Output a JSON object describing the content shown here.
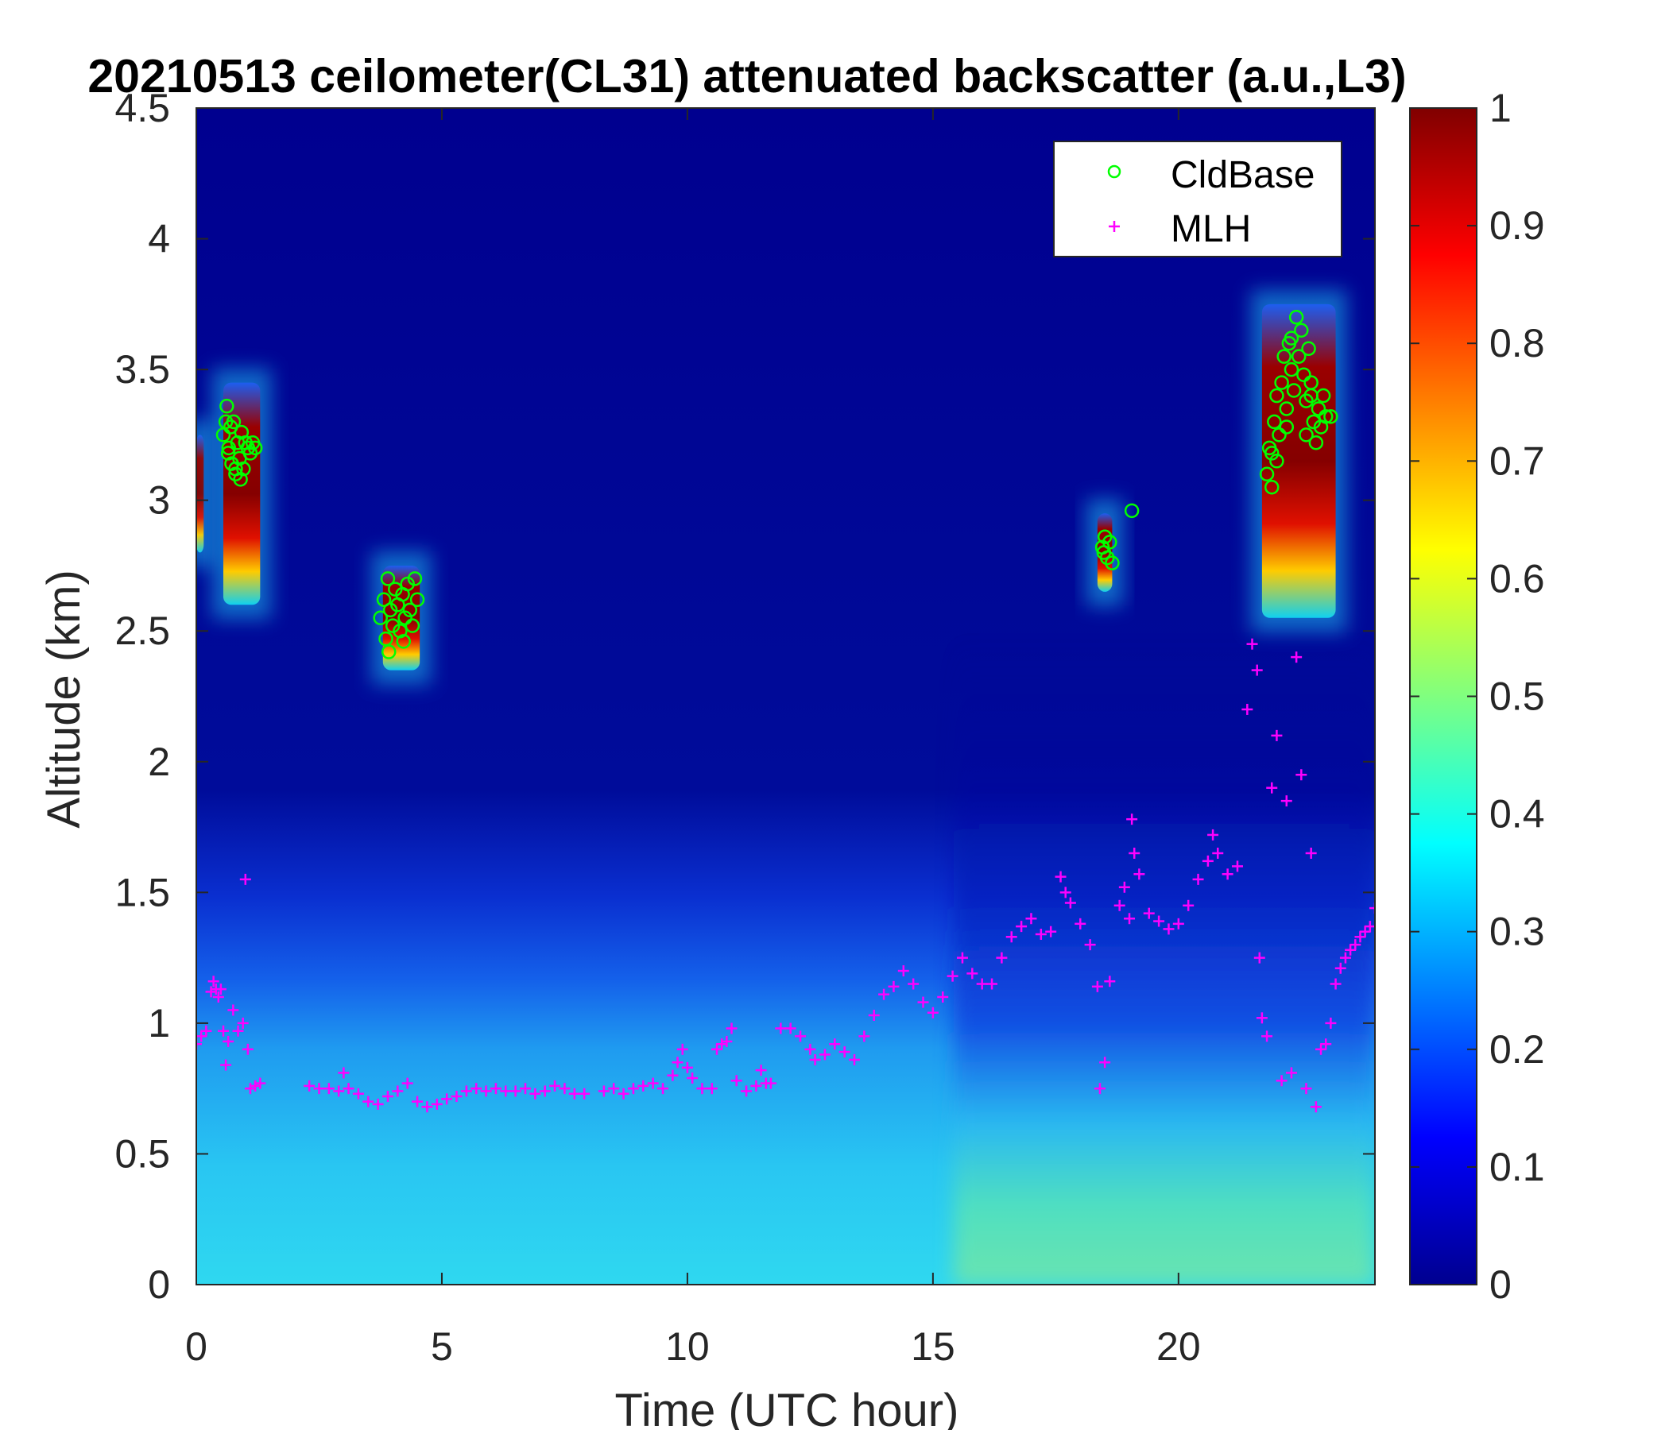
{
  "chart_data": {
    "type": "heatmap",
    "title": "20210513 ceilometer(CL31) attenuated backscatter (a.u.,L3)",
    "xlabel": "Time (UTC hour)",
    "ylabel": "Altitude (km)",
    "xlim": [
      0,
      24
    ],
    "ylim": [
      0,
      4.5
    ],
    "xticks": [
      "0",
      "5",
      "10",
      "15",
      "20"
    ],
    "xtick_values": [
      0,
      5,
      10,
      15,
      20
    ],
    "yticks": [
      "0",
      "0.5",
      "1",
      "1.5",
      "2",
      "2.5",
      "3",
      "3.5",
      "4",
      "4.5"
    ],
    "ytick_values": [
      0,
      0.5,
      1,
      1.5,
      2,
      2.5,
      3,
      3.5,
      4,
      4.5
    ],
    "colorbar": {
      "range": [
        0,
        1
      ],
      "colormap": "jet",
      "ticks": [
        "0",
        "0.1",
        "0.2",
        "0.3",
        "0.4",
        "0.5",
        "0.6",
        "0.7",
        "0.8",
        "0.9",
        "1"
      ],
      "tick_values": [
        0,
        0.1,
        0.2,
        0.3,
        0.4,
        0.5,
        0.6,
        0.7,
        0.8,
        0.9,
        1
      ]
    },
    "legend": {
      "location": "top-right",
      "entries": [
        {
          "label": "CldBase",
          "marker": "circle",
          "color": "#00ff00"
        },
        {
          "label": "MLH",
          "marker": "plus",
          "color": "#ff00ff"
        }
      ]
    },
    "cloud_regions": [
      {
        "t0": 0.0,
        "t1": 0.15,
        "z0": 2.8,
        "z1": 3.25,
        "value": 0.95
      },
      {
        "t0": 0.55,
        "t1": 1.3,
        "z0": 2.6,
        "z1": 3.45,
        "value": 1.0
      },
      {
        "t0": 3.8,
        "t1": 4.55,
        "z0": 2.35,
        "z1": 2.75,
        "value": 0.95
      },
      {
        "t0": 18.35,
        "t1": 18.65,
        "z0": 2.65,
        "z1": 2.95,
        "value": 1.0
      },
      {
        "t0": 21.7,
        "t1": 23.2,
        "z0": 2.55,
        "z1": 3.75,
        "value": 1.0
      }
    ],
    "series": [
      {
        "name": "CldBase",
        "marker": "circle",
        "color": "#00ff00",
        "points": [
          [
            0.55,
            3.25
          ],
          [
            0.6,
            3.3
          ],
          [
            0.62,
            3.36
          ],
          [
            0.66,
            3.2
          ],
          [
            0.7,
            3.28
          ],
          [
            0.72,
            3.14
          ],
          [
            0.76,
            3.3
          ],
          [
            0.8,
            3.1
          ],
          [
            0.84,
            3.22
          ],
          [
            0.88,
            3.16
          ],
          [
            0.92,
            3.26
          ],
          [
            0.96,
            3.12
          ],
          [
            1.0,
            3.22
          ],
          [
            1.05,
            3.2
          ],
          [
            1.1,
            3.18
          ],
          [
            1.15,
            3.22
          ],
          [
            1.2,
            3.2
          ],
          [
            0.9,
            3.08
          ],
          [
            0.8,
            3.12
          ],
          [
            0.65,
            3.18
          ],
          [
            3.75,
            2.55
          ],
          [
            3.82,
            2.62
          ],
          [
            3.86,
            2.47
          ],
          [
            3.9,
            2.7
          ],
          [
            3.95,
            2.58
          ],
          [
            4.0,
            2.52
          ],
          [
            4.05,
            2.66
          ],
          [
            4.1,
            2.6
          ],
          [
            4.15,
            2.5
          ],
          [
            4.2,
            2.64
          ],
          [
            4.25,
            2.55
          ],
          [
            4.3,
            2.68
          ],
          [
            4.35,
            2.58
          ],
          [
            4.4,
            2.52
          ],
          [
            4.45,
            2.7
          ],
          [
            4.5,
            2.62
          ],
          [
            3.92,
            2.42
          ],
          [
            4.22,
            2.46
          ],
          [
            18.45,
            2.82
          ],
          [
            18.5,
            2.86
          ],
          [
            18.55,
            2.78
          ],
          [
            18.6,
            2.84
          ],
          [
            18.65,
            2.76
          ],
          [
            18.48,
            2.8
          ],
          [
            19.05,
            2.96
          ],
          [
            21.8,
            3.1
          ],
          [
            21.85,
            3.2
          ],
          [
            21.9,
            3.05
          ],
          [
            21.95,
            3.3
          ],
          [
            22.0,
            3.4
          ],
          [
            22.05,
            3.25
          ],
          [
            22.1,
            3.45
          ],
          [
            22.15,
            3.55
          ],
          [
            22.2,
            3.35
          ],
          [
            22.25,
            3.6
          ],
          [
            22.3,
            3.5
          ],
          [
            22.35,
            3.42
          ],
          [
            22.4,
            3.7
          ],
          [
            22.45,
            3.55
          ],
          [
            22.5,
            3.65
          ],
          [
            22.55,
            3.48
          ],
          [
            22.6,
            3.38
          ],
          [
            22.65,
            3.58
          ],
          [
            22.7,
            3.45
          ],
          [
            22.75,
            3.3
          ],
          [
            22.8,
            3.22
          ],
          [
            22.85,
            3.35
          ],
          [
            22.9,
            3.28
          ],
          [
            22.95,
            3.4
          ],
          [
            23.0,
            3.32
          ],
          [
            23.1,
            3.32
          ],
          [
            22.0,
            3.15
          ],
          [
            22.2,
            3.28
          ],
          [
            22.6,
            3.25
          ],
          [
            21.9,
            3.18
          ],
          [
            22.3,
            3.62
          ],
          [
            22.7,
            3.4
          ]
        ]
      },
      {
        "name": "MLH",
        "marker": "plus",
        "color": "#ff00ff",
        "points": [
          [
            0.0,
            0.92
          ],
          [
            0.1,
            0.95
          ],
          [
            0.2,
            0.97
          ],
          [
            0.3,
            1.12
          ],
          [
            0.35,
            1.16
          ],
          [
            0.4,
            1.13
          ],
          [
            0.45,
            1.1
          ],
          [
            0.5,
            1.13
          ],
          [
            0.55,
            0.97
          ],
          [
            0.6,
            0.84
          ],
          [
            0.65,
            0.93
          ],
          [
            0.75,
            1.05
          ],
          [
            0.85,
            0.97
          ],
          [
            0.95,
            1.0
          ],
          [
            1.0,
            1.55
          ],
          [
            1.05,
            0.9
          ],
          [
            1.1,
            0.75
          ],
          [
            1.2,
            0.76
          ],
          [
            1.3,
            0.77
          ],
          [
            2.3,
            0.76
          ],
          [
            2.5,
            0.75
          ],
          [
            2.7,
            0.75
          ],
          [
            2.9,
            0.74
          ],
          [
            3.0,
            0.81
          ],
          [
            3.1,
            0.75
          ],
          [
            3.3,
            0.73
          ],
          [
            3.5,
            0.7
          ],
          [
            3.7,
            0.69
          ],
          [
            3.9,
            0.72
          ],
          [
            4.1,
            0.74
          ],
          [
            4.3,
            0.77
          ],
          [
            4.5,
            0.7
          ],
          [
            4.7,
            0.68
          ],
          [
            4.9,
            0.69
          ],
          [
            5.1,
            0.71
          ],
          [
            5.3,
            0.72
          ],
          [
            5.5,
            0.74
          ],
          [
            5.7,
            0.75
          ],
          [
            5.9,
            0.74
          ],
          [
            6.1,
            0.75
          ],
          [
            6.3,
            0.74
          ],
          [
            6.5,
            0.74
          ],
          [
            6.7,
            0.75
          ],
          [
            6.9,
            0.73
          ],
          [
            7.1,
            0.74
          ],
          [
            7.3,
            0.76
          ],
          [
            7.5,
            0.75
          ],
          [
            7.7,
            0.73
          ],
          [
            7.9,
            0.73
          ],
          [
            8.3,
            0.74
          ],
          [
            8.5,
            0.75
          ],
          [
            8.7,
            0.73
          ],
          [
            8.9,
            0.75
          ],
          [
            9.1,
            0.76
          ],
          [
            9.3,
            0.77
          ],
          [
            9.5,
            0.75
          ],
          [
            9.7,
            0.8
          ],
          [
            9.8,
            0.85
          ],
          [
            9.9,
            0.9
          ],
          [
            10.0,
            0.83
          ],
          [
            10.1,
            0.79
          ],
          [
            10.3,
            0.75
          ],
          [
            10.5,
            0.75
          ],
          [
            10.6,
            0.9
          ],
          [
            10.7,
            0.92
          ],
          [
            10.8,
            0.93
          ],
          [
            10.9,
            0.98
          ],
          [
            11.0,
            0.78
          ],
          [
            11.2,
            0.74
          ],
          [
            11.4,
            0.76
          ],
          [
            11.5,
            0.82
          ],
          [
            11.6,
            0.77
          ],
          [
            11.7,
            0.77
          ],
          [
            11.9,
            0.98
          ],
          [
            12.1,
            0.98
          ],
          [
            12.3,
            0.95
          ],
          [
            12.5,
            0.9
          ],
          [
            12.6,
            0.86
          ],
          [
            12.8,
            0.88
          ],
          [
            13.0,
            0.92
          ],
          [
            13.2,
            0.89
          ],
          [
            13.4,
            0.86
          ],
          [
            13.6,
            0.95
          ],
          [
            13.8,
            1.03
          ],
          [
            14.0,
            1.11
          ],
          [
            14.2,
            1.14
          ],
          [
            14.4,
            1.2
          ],
          [
            14.6,
            1.15
          ],
          [
            14.8,
            1.08
          ],
          [
            15.0,
            1.04
          ],
          [
            15.2,
            1.1
          ],
          [
            15.4,
            1.18
          ],
          [
            15.6,
            1.25
          ],
          [
            15.8,
            1.19
          ],
          [
            16.0,
            1.15
          ],
          [
            16.2,
            1.15
          ],
          [
            16.4,
            1.25
          ],
          [
            16.6,
            1.33
          ],
          [
            16.8,
            1.37
          ],
          [
            17.0,
            1.4
          ],
          [
            17.2,
            1.34
          ],
          [
            17.4,
            1.35
          ],
          [
            17.6,
            1.56
          ],
          [
            17.7,
            1.5
          ],
          [
            17.8,
            1.46
          ],
          [
            18.0,
            1.38
          ],
          [
            18.2,
            1.3
          ],
          [
            18.35,
            1.14
          ],
          [
            18.4,
            0.75
          ],
          [
            18.5,
            0.85
          ],
          [
            18.6,
            1.16
          ],
          [
            18.8,
            1.45
          ],
          [
            18.9,
            1.52
          ],
          [
            19.0,
            1.4
          ],
          [
            19.05,
            1.78
          ],
          [
            19.1,
            1.65
          ],
          [
            19.2,
            1.57
          ],
          [
            19.4,
            1.42
          ],
          [
            19.6,
            1.39
          ],
          [
            19.8,
            1.36
          ],
          [
            20.0,
            1.38
          ],
          [
            20.2,
            1.45
          ],
          [
            20.4,
            1.55
          ],
          [
            20.6,
            1.62
          ],
          [
            20.7,
            1.72
          ],
          [
            20.8,
            1.65
          ],
          [
            21.0,
            1.57
          ],
          [
            21.2,
            1.6
          ],
          [
            21.4,
            2.2
          ],
          [
            21.5,
            2.45
          ],
          [
            21.6,
            2.35
          ],
          [
            21.65,
            1.25
          ],
          [
            21.7,
            1.02
          ],
          [
            21.8,
            0.95
          ],
          [
            21.9,
            1.9
          ],
          [
            22.0,
            2.1
          ],
          [
            22.1,
            0.78
          ],
          [
            22.2,
            1.85
          ],
          [
            22.3,
            0.81
          ],
          [
            22.4,
            2.4
          ],
          [
            22.5,
            1.95
          ],
          [
            22.6,
            0.75
          ],
          [
            22.7,
            1.65
          ],
          [
            22.8,
            0.68
          ],
          [
            22.9,
            0.9
          ],
          [
            23.0,
            0.92
          ],
          [
            23.1,
            1.0
          ],
          [
            23.2,
            1.15
          ],
          [
            23.3,
            1.21
          ],
          [
            23.4,
            1.25
          ],
          [
            23.5,
            1.28
          ],
          [
            23.6,
            1.3
          ],
          [
            23.7,
            1.33
          ],
          [
            23.8,
            1.35
          ],
          [
            23.9,
            1.37
          ],
          [
            24.0,
            1.44
          ]
        ]
      }
    ]
  }
}
